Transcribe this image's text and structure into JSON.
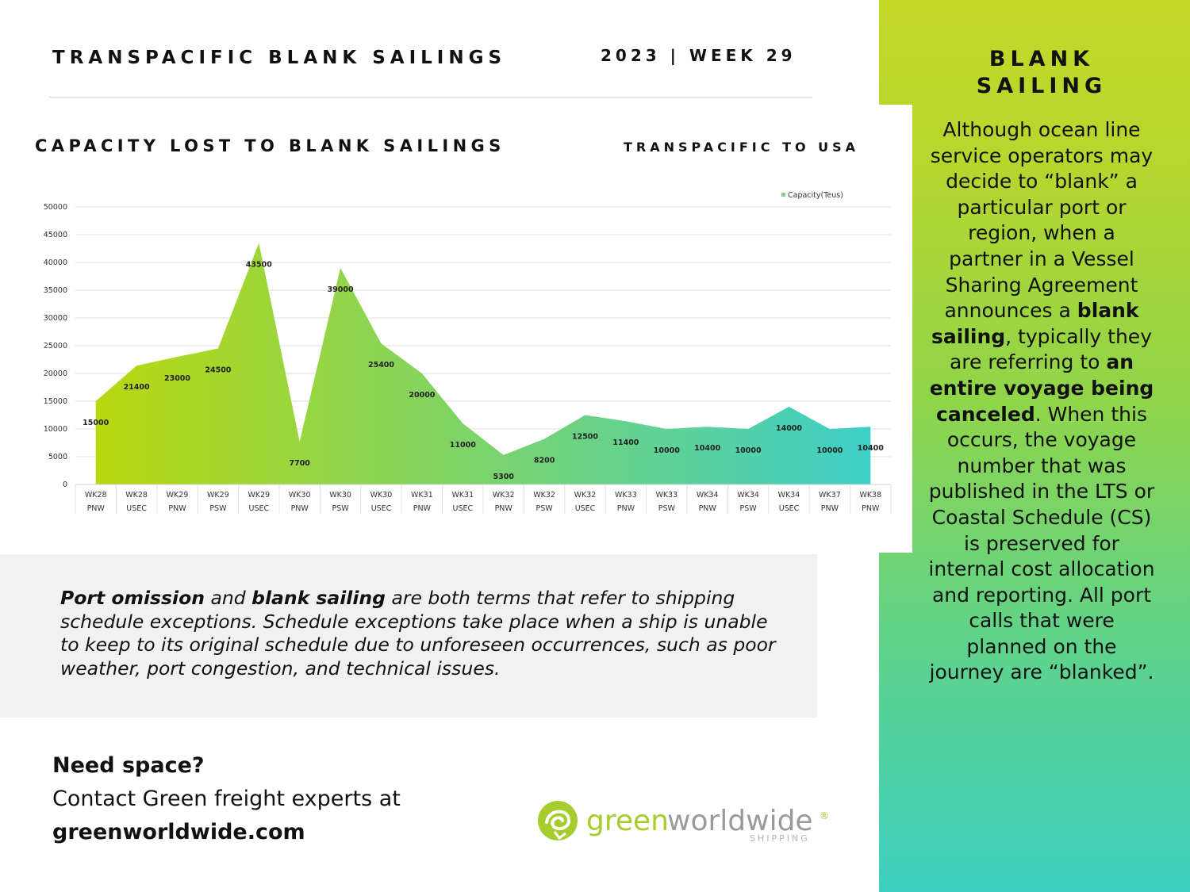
{
  "header": {
    "title": "TRANSPACIFIC BLANK SAILINGS",
    "week": "2023 | WEEK 29"
  },
  "chart_section": {
    "title": "CAPACITY LOST TO BLANK SAILINGS",
    "subtitle": "TRANSPACIFIC TO USA"
  },
  "chart_data": {
    "type": "area",
    "categories": [
      [
        "WK28",
        "PNW"
      ],
      [
        "WK28",
        "USEC"
      ],
      [
        "WK29",
        "PNW"
      ],
      [
        "WK29",
        "PSW"
      ],
      [
        "WK29",
        "USEC"
      ],
      [
        "WK30",
        "PNW"
      ],
      [
        "WK30",
        "PSW"
      ],
      [
        "WK30",
        "USEC"
      ],
      [
        "WK31",
        "PNW"
      ],
      [
        "WK31",
        "USEC"
      ],
      [
        "WK32",
        "PNW"
      ],
      [
        "WK32",
        "PSW"
      ],
      [
        "WK32",
        "USEC"
      ],
      [
        "WK33",
        "PNW"
      ],
      [
        "WK33",
        "PSW"
      ],
      [
        "WK34",
        "PNW"
      ],
      [
        "WK34",
        "PSW"
      ],
      [
        "WK34",
        "USEC"
      ],
      [
        "WK37",
        "PNW"
      ],
      [
        "WK38",
        "PNW"
      ]
    ],
    "series": [
      {
        "name": "Capacity(Teus)",
        "values": [
          15000,
          21400,
          23000,
          24500,
          43500,
          7700,
          39000,
          25400,
          20000,
          11000,
          5300,
          8200,
          12500,
          11400,
          10000,
          10400,
          10000,
          14000,
          10000,
          10400
        ]
      }
    ],
    "ylim": [
      0,
      50000
    ],
    "yticks": [
      0,
      5000,
      10000,
      15000,
      20000,
      25000,
      30000,
      35000,
      40000,
      45000,
      50000
    ],
    "grid": true,
    "legend": "top-right",
    "colors": {
      "start": "#b8d80f",
      "end": "#3ecfc8"
    }
  },
  "sidebar": {
    "title_line1": "BLANK",
    "title_line2": "SAILING",
    "text_1": "Although ocean line service operators may decide to “blank” a particular port or region, when a partner in a Vessel Sharing Agreement announces a ",
    "bold_1": "blank sailing",
    "text_2": ", typically they are referring to ",
    "bold_2": "an entire voyage being canceled",
    "text_3": ". When this occurs, the voyage number that was published in the LTS or Coastal Schedule (CS) is preserved for internal cost allocation and reporting. All port calls that were planned on the journey are “blanked”."
  },
  "info": {
    "bold_1": "Port omission",
    "text_1": " and ",
    "bold_2": "blank sailing",
    "text_2": " are both terms that refer to shipping schedule exceptions. Schedule exceptions take place when a ship is unable to keep to its original schedule due to unforeseen occurrences, such as poor weather, port congestion, and technical issues."
  },
  "cta": {
    "heading": "Need space?",
    "line": "Contact Green freight experts at",
    "site": "greenworldwide.com"
  },
  "logo": {
    "word_green": "green",
    "word_worldwide": "worldwide",
    "registered": "®",
    "tagline": "SHIPPING",
    "icon": "globe-swirl-icon",
    "colors": {
      "green": "#a6cd2e",
      "grey": "#9a9a9a"
    }
  }
}
